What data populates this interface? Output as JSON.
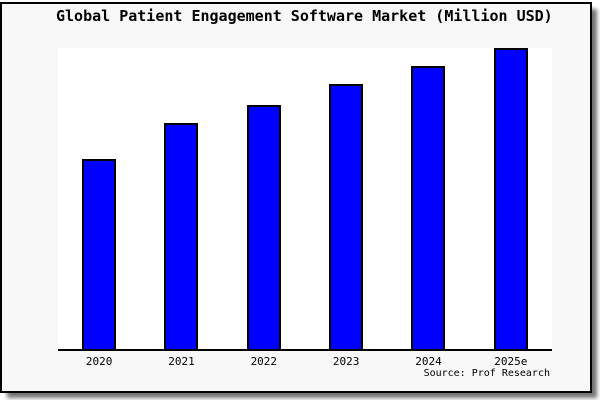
{
  "title": "Global Patient Engagement Software Market (Million USD)",
  "source": "Source: Prof Research",
  "colors": {
    "figure_background": "#f8f8f8",
    "plot_background": "#ffffff",
    "bar_fill": "#0000ff",
    "bar_border": "#000000",
    "frame_border": "#000000",
    "axis_line": "#000000",
    "text": "#000000"
  },
  "chart_data": {
    "type": "bar",
    "title": "Global Patient Engagement Software Market (Million USD)",
    "categories": [
      "2020",
      "2021",
      "2022",
      "2023",
      "2024",
      "2025e"
    ],
    "values": [
      63,
      75,
      81,
      88,
      94,
      100
    ],
    "xlabel": "",
    "ylabel": "",
    "ylim": [
      0,
      100
    ],
    "y_axis_labels_shown": false,
    "grid": false,
    "legend": null,
    "bar_color": "#0000ff",
    "source": "Source: Prof Research"
  }
}
